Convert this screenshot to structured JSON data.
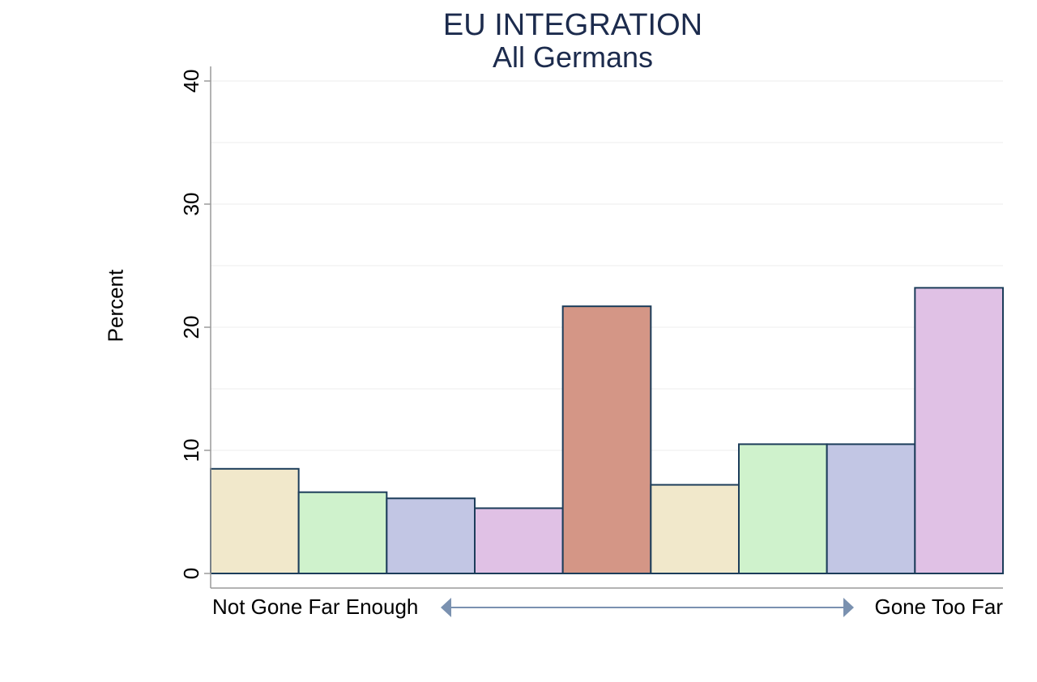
{
  "chart_data": {
    "type": "bar",
    "title": "EU INTEGRATION",
    "subtitle": "All Germans",
    "ylabel": "Percent",
    "xlabel_left": "Not Gone Far Enough",
    "xlabel_right": "Gone Too Far",
    "ylim": [
      0,
      40
    ],
    "yticks": [
      "0",
      "10",
      "20",
      "30",
      "40"
    ],
    "grid": true,
    "values": [
      8.5,
      6.6,
      6.1,
      5.3,
      21.7,
      7.2,
      10.5,
      10.5,
      23.2
    ],
    "colors": [
      "#f1e8cb",
      "#cff2cc",
      "#c2c6e4",
      "#e0c1e5",
      "#d49686",
      "#f1e8cb",
      "#cff2cc",
      "#c2c6e4",
      "#e0c1e5"
    ],
    "edge_color": "#1c3d5a",
    "arrow_color": "#7a91b0"
  }
}
